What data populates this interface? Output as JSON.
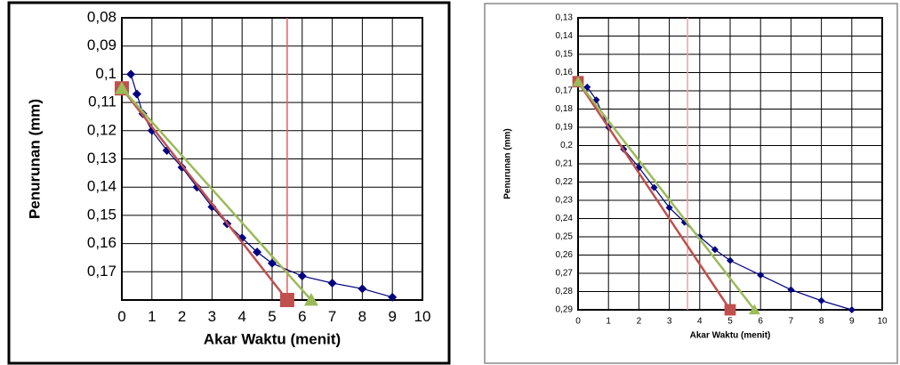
{
  "chart_data": [
    {
      "type": "line",
      "xlabel": "Akar Waktu (menit)",
      "ylabel": "Penurunan (mm)",
      "inverted_y": true,
      "grid": true,
      "xlim": [
        0,
        10
      ],
      "xticks": [
        0,
        1,
        2,
        3,
        4,
        5,
        6,
        7,
        8,
        9,
        10
      ],
      "ylim": [
        0.08,
        0.18
      ],
      "yticks": [
        {
          "value": 0.08,
          "label": "0,08"
        },
        {
          "value": 0.09,
          "label": "0,09"
        },
        {
          "value": 0.1,
          "label": "0,1"
        },
        {
          "value": 0.11,
          "label": "0,11"
        },
        {
          "value": 0.12,
          "label": "0,12"
        },
        {
          "value": 0.13,
          "label": "0,13"
        },
        {
          "value": 0.14,
          "label": "0,14"
        },
        {
          "value": 0.15,
          "label": "0,15"
        },
        {
          "value": 0.16,
          "label": "0,16"
        },
        {
          "value": 0.17,
          "label": "0,17"
        }
      ],
      "vline": 5.5,
      "vline_color": "#e06060",
      "series": [
        {
          "color": "#000080",
          "marker": "diamond",
          "x": [
            0.3,
            0.5,
            0.7,
            1,
            1.5,
            2,
            2.5,
            3,
            3.5,
            4,
            4.5,
            5,
            6,
            7,
            8,
            9
          ],
          "values": [
            0.1,
            0.107,
            0.114,
            0.12,
            0.127,
            0.133,
            0.14,
            0.147,
            0.153,
            0.158,
            0.163,
            0.167,
            0.1715,
            0.174,
            0.176,
            0.179
          ]
        },
        {
          "color": "#c0504d",
          "marker": "square",
          "x": [
            0,
            5.5
          ],
          "values": [
            0.105,
            0.18
          ]
        },
        {
          "color": "#9bbb59",
          "marker": "triangle",
          "x": [
            0,
            6.3
          ],
          "values": [
            0.105,
            0.18
          ]
        }
      ]
    },
    {
      "type": "line",
      "xlabel": "Akar Waktu (menit)",
      "ylabel": "Penurunan (mm)",
      "inverted_y": true,
      "grid": true,
      "xlim": [
        0,
        10
      ],
      "xticks": [
        0,
        1,
        2,
        3,
        4,
        5,
        6,
        7,
        8,
        9,
        10
      ],
      "ylim": [
        0.13,
        0.29
      ],
      "yticks": [
        {
          "value": 0.13,
          "label": "0,13"
        },
        {
          "value": 0.14,
          "label": "0,14"
        },
        {
          "value": 0.15,
          "label": "0,15"
        },
        {
          "value": 0.16,
          "label": "0,16"
        },
        {
          "value": 0.17,
          "label": "0,17"
        },
        {
          "value": 0.18,
          "label": "0,18"
        },
        {
          "value": 0.19,
          "label": "0,19"
        },
        {
          "value": 0.2,
          "label": "0,2"
        },
        {
          "value": 0.21,
          "label": "0,21"
        },
        {
          "value": 0.22,
          "label": "0,22"
        },
        {
          "value": 0.23,
          "label": "0,23"
        },
        {
          "value": 0.24,
          "label": "0,24"
        },
        {
          "value": 0.25,
          "label": "0,25"
        },
        {
          "value": 0.26,
          "label": "0,26"
        },
        {
          "value": 0.27,
          "label": "0,27"
        },
        {
          "value": 0.28,
          "label": "0,28"
        },
        {
          "value": 0.29,
          "label": "0,29"
        }
      ],
      "vline": 3.6,
      "vline_color": "#f0a0a0",
      "series": [
        {
          "color": "#000080",
          "marker": "diamond",
          "x": [
            0.3,
            0.6,
            1,
            1.5,
            2,
            2.5,
            3,
            3.5,
            4,
            4.5,
            5,
            6,
            7,
            8,
            9
          ],
          "values": [
            0.168,
            0.175,
            0.19,
            0.202,
            0.212,
            0.223,
            0.234,
            0.242,
            0.25,
            0.257,
            0.263,
            0.271,
            0.279,
            0.285,
            0.29
          ]
        },
        {
          "color": "#c0504d",
          "marker": "square",
          "x": [
            0,
            5
          ],
          "values": [
            0.165,
            0.29
          ]
        },
        {
          "color": "#9bbb59",
          "marker": "triangle",
          "x": [
            0,
            5.8
          ],
          "values": [
            0.165,
            0.29
          ]
        }
      ]
    }
  ]
}
